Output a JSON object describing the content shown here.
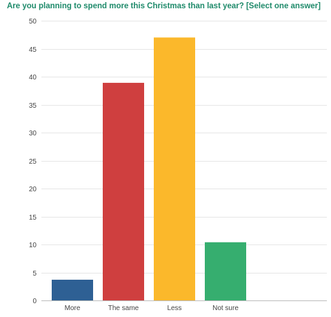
{
  "chart_data": {
    "type": "bar",
    "title": "Are you planning to spend more this Christmas than last year? [Select one answer]",
    "categories": [
      "More",
      "The same",
      "Less",
      "Not sure"
    ],
    "values": [
      3.7,
      38.9,
      47.0,
      10.4
    ],
    "colors": [
      "#2e6094",
      "#cf3f3f",
      "#fbb82b",
      "#36ae6f"
    ],
    "xlabel": "",
    "ylabel": "",
    "ylim": [
      0,
      50
    ],
    "yticks": [
      0,
      5,
      10,
      15,
      20,
      25,
      30,
      35,
      40,
      45,
      50
    ],
    "grid": true,
    "legend": "none"
  }
}
